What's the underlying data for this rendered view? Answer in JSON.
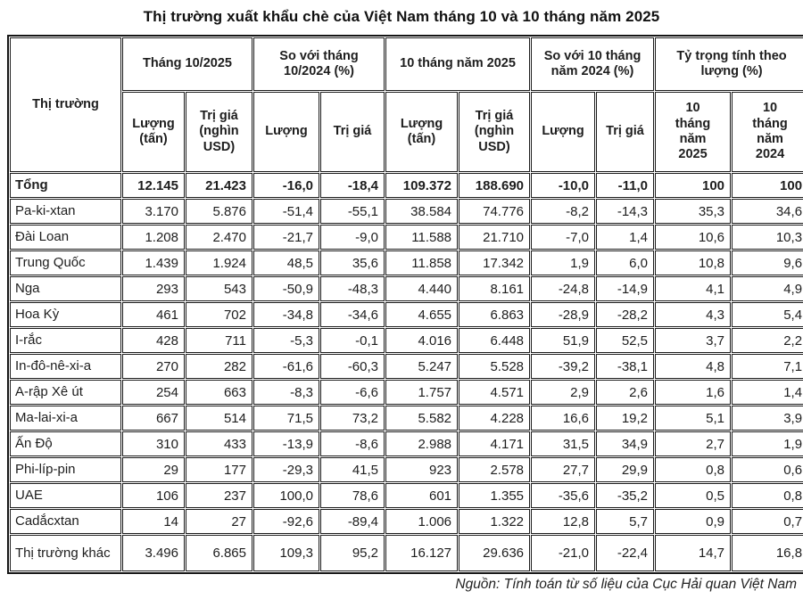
{
  "chart_data": {
    "type": "table",
    "title": "Thị trường xuất khẩu chè của Việt Nam tháng 10 và 10 tháng năm 2025",
    "source_note": "Nguồn: Tính toán từ số liệu của Cục Hải quan Việt Nam",
    "header": {
      "row_label": "Thị trường",
      "groups": [
        {
          "label": "Tháng 10/2025",
          "sub": [
            "Lượng (tấn)",
            "Trị giá (nghìn USD)"
          ]
        },
        {
          "label": "So với tháng 10/2024 (%)",
          "sub": [
            "Lượng",
            "Trị giá"
          ]
        },
        {
          "label": "10 tháng năm 2025",
          "sub": [
            "Lượng (tấn)",
            "Trị giá (nghìn USD)"
          ]
        },
        {
          "label": "So với 10 tháng năm 2024 (%)",
          "sub": [
            "Lượng",
            "Trị giá"
          ]
        },
        {
          "label": "Tỷ trọng tính theo lượng (%)",
          "sub": [
            "10 tháng năm 2025",
            "10 tháng năm 2024"
          ]
        }
      ]
    },
    "rows": [
      {
        "market": "Tổng",
        "bold": true,
        "values": [
          "12.145",
          "21.423",
          "-16,0",
          "-18,4",
          "109.372",
          "188.690",
          "-10,0",
          "-11,0",
          "100",
          "100"
        ]
      },
      {
        "market": "Pa-ki-xtan",
        "values": [
          "3.170",
          "5.876",
          "-51,4",
          "-55,1",
          "38.584",
          "74.776",
          "-8,2",
          "-14,3",
          "35,3",
          "34,6"
        ]
      },
      {
        "market": "Đài Loan",
        "values": [
          "1.208",
          "2.470",
          "-21,7",
          "-9,0",
          "11.588",
          "21.710",
          "-7,0",
          "1,4",
          "10,6",
          "10,3"
        ]
      },
      {
        "market": "Trung Quốc",
        "values": [
          "1.439",
          "1.924",
          "48,5",
          "35,6",
          "11.858",
          "17.342",
          "1,9",
          "6,0",
          "10,8",
          "9,6"
        ]
      },
      {
        "market": "Nga",
        "values": [
          "293",
          "543",
          "-50,9",
          "-48,3",
          "4.440",
          "8.161",
          "-24,8",
          "-14,9",
          "4,1",
          "4,9"
        ]
      },
      {
        "market": "Hoa Kỳ",
        "values": [
          "461",
          "702",
          "-34,8",
          "-34,6",
          "4.655",
          "6.863",
          "-28,9",
          "-28,2",
          "4,3",
          "5,4"
        ]
      },
      {
        "market": "I-rắc",
        "values": [
          "428",
          "711",
          "-5,3",
          "-0,1",
          "4.016",
          "6.448",
          "51,9",
          "52,5",
          "3,7",
          "2,2"
        ]
      },
      {
        "market": "In-đô-nê-xi-a",
        "values": [
          "270",
          "282",
          "-61,6",
          "-60,3",
          "5.247",
          "5.528",
          "-39,2",
          "-38,1",
          "4,8",
          "7,1"
        ]
      },
      {
        "market": "A-rập Xê út",
        "values": [
          "254",
          "663",
          "-8,3",
          "-6,6",
          "1.757",
          "4.571",
          "2,9",
          "2,6",
          "1,6",
          "1,4"
        ]
      },
      {
        "market": "Ma-lai-xi-a",
        "values": [
          "667",
          "514",
          "71,5",
          "73,2",
          "5.582",
          "4.228",
          "16,6",
          "19,2",
          "5,1",
          "3,9"
        ]
      },
      {
        "market": "Ấn Độ",
        "values": [
          "310",
          "433",
          "-13,9",
          "-8,6",
          "2.988",
          "4.171",
          "31,5",
          "34,9",
          "2,7",
          "1,9"
        ]
      },
      {
        "market": "Phi-líp-pin",
        "values": [
          "29",
          "177",
          "-29,3",
          "41,5",
          "923",
          "2.578",
          "27,7",
          "29,9",
          "0,8",
          "0,6"
        ]
      },
      {
        "market": "UAE",
        "values": [
          "106",
          "237",
          "100,0",
          "78,6",
          "601",
          "1.355",
          "-35,6",
          "-35,2",
          "0,5",
          "0,8"
        ]
      },
      {
        "market": "Cadắcxtan",
        "values": [
          "14",
          "27",
          "-92,6",
          "-89,4",
          "1.006",
          "1.322",
          "12,8",
          "5,7",
          "0,9",
          "0,7"
        ]
      },
      {
        "market": "Thị trường khác",
        "values": [
          "3.496",
          "6.865",
          "109,3",
          "95,2",
          "16.127",
          "29.636",
          "-21,0",
          "-22,4",
          "14,7",
          "16,8"
        ]
      }
    ]
  }
}
